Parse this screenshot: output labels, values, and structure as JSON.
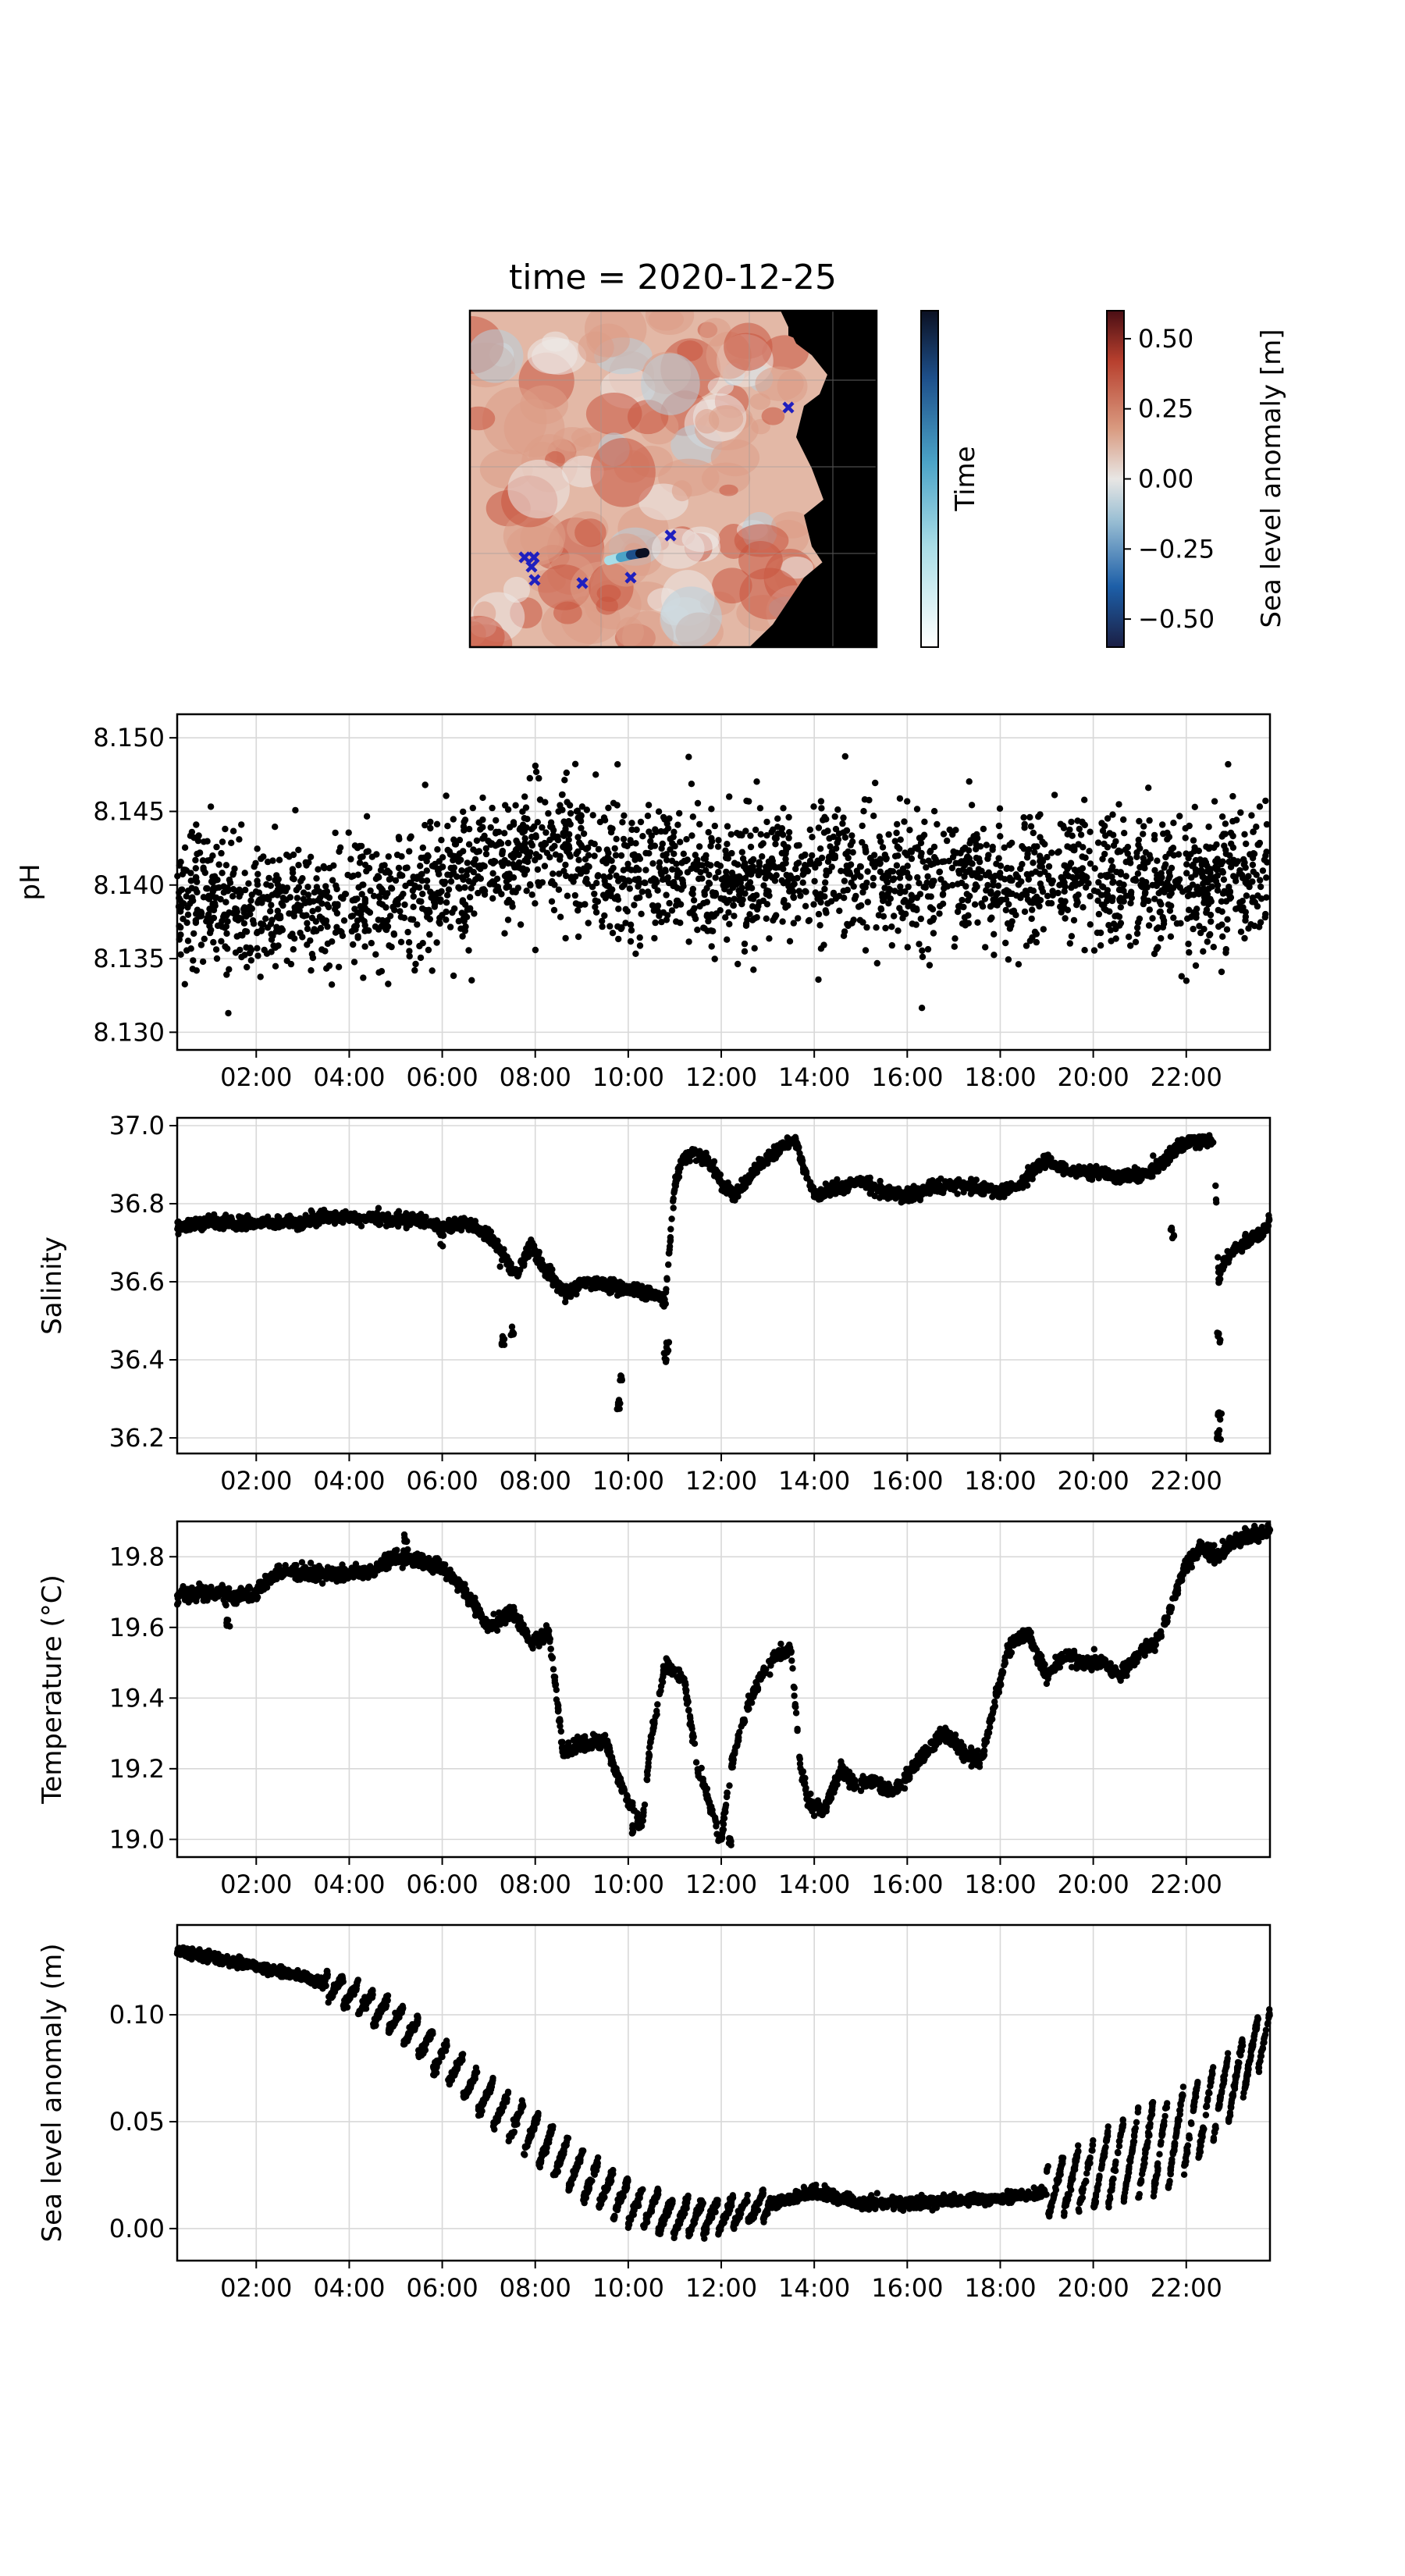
{
  "map": {
    "title": "time = 2020-12-25",
    "time_colorbar_label": "Time",
    "sla_colorbar_label": "Sea level anomaly [m]",
    "sla_ticks": [
      "0.50",
      "0.25",
      "0.00",
      "−0.25",
      "−0.50"
    ],
    "sla_tick_values": [
      0.5,
      0.25,
      0.0,
      -0.25,
      -0.5
    ],
    "sla_range": [
      -0.6,
      0.6
    ],
    "markers": {
      "symbol": "x",
      "color": "#1f1fbf",
      "count": 8
    },
    "track_colors": [
      "#ffffff",
      "#a9dde6",
      "#4ba3c7",
      "#1d4f8a",
      "#0b1022"
    ]
  },
  "time_ticks": [
    "02:00",
    "04:00",
    "06:00",
    "08:00",
    "10:00",
    "12:00",
    "14:00",
    "16:00",
    "18:00",
    "20:00",
    "22:00"
  ],
  "chart_data": [
    {
      "type": "scatter",
      "name": "ph",
      "ylabel": "pH",
      "x_range_hours": [
        0.3,
        23.8
      ],
      "ylim": [
        8.1288,
        8.1516
      ],
      "yticks": [
        8.13,
        8.135,
        8.14,
        8.145,
        8.15
      ],
      "ytick_labels": [
        "8.130",
        "8.135",
        "8.140",
        "8.145",
        "8.150"
      ],
      "grid": true,
      "points": {
        "hours": [
          0.3,
          2.0,
          4.0,
          6.0,
          7.5,
          8.0,
          9.0,
          10.0,
          11.0,
          12.0,
          13.0,
          14.0,
          15.0,
          16.0,
          18.0,
          20.0,
          22.0,
          23.8
        ],
        "values": [
          8.139,
          8.1385,
          8.1385,
          8.14,
          8.1415,
          8.1425,
          8.142,
          8.1405,
          8.141,
          8.1405,
          8.141,
          8.141,
          8.141,
          8.1405,
          8.1405,
          8.1405,
          8.14,
          8.1405
        ]
      },
      "noise": 0.0022,
      "outliers": [
        [
          1.4,
          8.1313
        ],
        [
          11.3,
          8.1487
        ],
        [
          22.9,
          8.1482
        ],
        [
          9.3,
          8.1475
        ],
        [
          4.3,
          8.1337
        ],
        [
          21.9,
          8.1338
        ]
      ]
    },
    {
      "type": "scatter",
      "name": "salinity",
      "ylabel": "Salinity",
      "x_range_hours": [
        0.3,
        23.8
      ],
      "ylim": [
        36.16,
        37.02
      ],
      "yticks": [
        36.2,
        36.4,
        36.6,
        36.8,
        37.0
      ],
      "ytick_labels": [
        "36.2",
        "36.4",
        "36.6",
        "36.8",
        "37.0"
      ],
      "grid": true,
      "points": {
        "hours": [
          0.3,
          1.0,
          2.0,
          3.0,
          3.6,
          4.5,
          5.5,
          6.0,
          6.5,
          7.0,
          7.4,
          7.6,
          7.9,
          8.1,
          8.4,
          8.7,
          9.0,
          9.5,
          10.0,
          10.5,
          10.8,
          10.9,
          11.0,
          11.2,
          11.5,
          11.8,
          12.0,
          12.3,
          12.7,
          13.0,
          13.4,
          13.6,
          13.8,
          14.0,
          14.5,
          15.0,
          15.5,
          16.0,
          16.5,
          17.0,
          17.5,
          18.0,
          18.5,
          19.0,
          19.4,
          19.8,
          20.2,
          20.7,
          21.2,
          21.6,
          21.9,
          22.2,
          22.6,
          22.7,
          22.8,
          23.2,
          23.6,
          23.8
        ],
        "values": [
          36.74,
          36.75,
          36.75,
          36.75,
          36.77,
          36.76,
          36.76,
          36.74,
          36.75,
          36.72,
          36.65,
          36.62,
          36.7,
          36.65,
          36.6,
          36.57,
          36.6,
          36.59,
          36.58,
          36.57,
          36.55,
          36.7,
          36.85,
          36.92,
          36.93,
          36.9,
          36.85,
          36.82,
          36.88,
          36.92,
          36.95,
          36.96,
          36.88,
          36.82,
          36.84,
          36.86,
          36.83,
          36.82,
          36.84,
          36.85,
          36.84,
          36.83,
          36.86,
          36.91,
          36.89,
          36.88,
          36.88,
          36.87,
          36.88,
          36.92,
          36.95,
          36.96,
          36.96,
          36.6,
          36.65,
          36.7,
          36.72,
          36.76
        ]
      },
      "noise": 0.008,
      "spikes": [
        [
          7.3,
          36.44
        ],
        [
          7.5,
          36.47
        ],
        [
          9.8,
          36.28
        ],
        [
          9.85,
          36.34
        ],
        [
          10.8,
          36.4
        ],
        [
          10.85,
          36.43
        ],
        [
          22.7,
          36.2
        ],
        [
          22.72,
          36.25
        ],
        [
          22.7,
          36.45
        ],
        [
          21.7,
          36.72
        ],
        [
          6.0,
          36.7
        ],
        [
          8.3,
          36.62
        ]
      ]
    },
    {
      "type": "scatter",
      "name": "temperature",
      "ylabel": "Temperature (°C)",
      "x_range_hours": [
        0.3,
        23.8
      ],
      "ylim": [
        18.95,
        19.9
      ],
      "yticks": [
        19.0,
        19.2,
        19.4,
        19.6,
        19.8
      ],
      "ytick_labels": [
        "19.0",
        "19.2",
        "19.4",
        "19.6",
        "19.8"
      ],
      "grid": true,
      "points": {
        "hours": [
          0.3,
          1.0,
          1.5,
          2.0,
          2.5,
          3.5,
          4.5,
          5.0,
          5.5,
          6.0,
          6.5,
          7.0,
          7.5,
          7.9,
          8.3,
          8.6,
          8.8,
          9.0,
          9.5,
          10.0,
          10.3,
          10.5,
          10.8,
          11.2,
          11.5,
          11.8,
          12.0,
          12.2,
          12.5,
          12.8,
          13.2,
          13.5,
          13.7,
          13.9,
          14.2,
          14.6,
          14.9,
          15.3,
          15.7,
          16.0,
          16.4,
          16.8,
          17.2,
          17.6,
          17.9,
          18.2,
          18.6,
          19.0,
          19.4,
          19.8,
          20.2,
          20.6,
          21.0,
          21.3,
          21.5,
          22.0,
          22.3,
          22.7,
          23.0,
          23.4,
          23.8
        ],
        "values": [
          19.69,
          19.7,
          19.69,
          19.7,
          19.76,
          19.75,
          19.76,
          19.8,
          19.79,
          19.77,
          19.7,
          19.6,
          19.65,
          19.56,
          19.58,
          19.25,
          19.26,
          19.27,
          19.28,
          19.1,
          19.04,
          19.3,
          19.5,
          19.45,
          19.2,
          19.08,
          19.0,
          19.2,
          19.35,
          19.45,
          19.52,
          19.54,
          19.2,
          19.1,
          19.08,
          19.2,
          19.15,
          19.17,
          19.13,
          19.18,
          19.25,
          19.3,
          19.25,
          19.22,
          19.4,
          19.55,
          19.58,
          19.46,
          19.52,
          19.5,
          19.5,
          19.46,
          19.53,
          19.55,
          19.6,
          19.78,
          19.82,
          19.8,
          19.84,
          19.86,
          19.88
        ]
      },
      "noise": 0.01,
      "spikes": [
        [
          1.4,
          19.61
        ],
        [
          5.2,
          19.85
        ],
        [
          12.2,
          18.99
        ],
        [
          10.1,
          19.02
        ]
      ]
    },
    {
      "type": "scatter",
      "name": "sla",
      "ylabel": "Sea level anomaly (m)",
      "x_range_hours": [
        0.3,
        23.8
      ],
      "ylim": [
        -0.015,
        0.142
      ],
      "yticks": [
        0.0,
        0.05,
        0.1
      ],
      "ytick_labels": [
        "0.00",
        "0.05",
        "0.10"
      ],
      "grid": true,
      "points": {
        "hours": [
          0.3,
          1.5,
          3.0,
          4.0,
          5.0,
          6.0,
          7.0,
          8.0,
          9.0,
          10.0,
          11.0,
          12.0,
          13.0,
          14.0,
          15.0,
          16.0,
          17.0,
          18.0,
          19.0,
          20.0,
          21.0,
          22.0,
          23.0,
          23.8
        ],
        "values": [
          0.13,
          0.125,
          0.118,
          0.11,
          0.098,
          0.08,
          0.06,
          0.042,
          0.025,
          0.012,
          0.005,
          0.006,
          0.011,
          0.017,
          0.012,
          0.012,
          0.013,
          0.014,
          0.017,
          0.025,
          0.035,
          0.045,
          0.068,
          0.095
        ]
      },
      "bands": [
        [
          3.5,
          13.0,
          0.025
        ],
        [
          19.0,
          23.8,
          0.045
        ]
      ]
    }
  ]
}
